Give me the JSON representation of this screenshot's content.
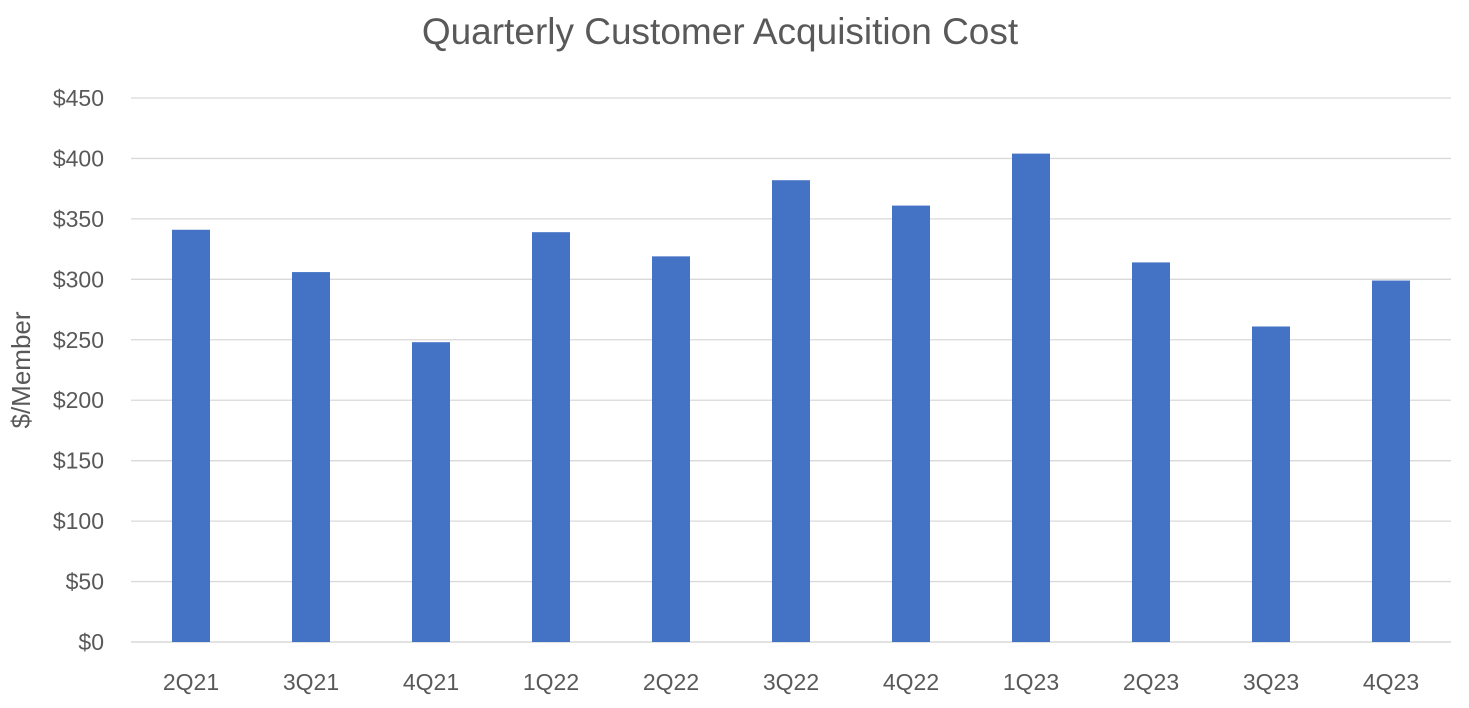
{
  "chart_data": {
    "type": "bar",
    "title": "Quarterly Customer Acquisition Cost",
    "xlabel": "",
    "ylabel": "$/Member",
    "categories": [
      "2Q21",
      "3Q21",
      "4Q21",
      "1Q22",
      "2Q22",
      "3Q22",
      "4Q22",
      "1Q23",
      "2Q23",
      "3Q23",
      "4Q23"
    ],
    "values": [
      341,
      306,
      248,
      339,
      319,
      382,
      361,
      404,
      314,
      261,
      299
    ],
    "ylim": [
      0,
      450
    ],
    "yticks": [
      0,
      50,
      100,
      150,
      200,
      250,
      300,
      350,
      400,
      450
    ],
    "ytick_labels": [
      "$0",
      "$50",
      "$100",
      "$150",
      "$200",
      "$250",
      "$300",
      "$350",
      "$400",
      "$450"
    ],
    "grid": true,
    "legend": "none",
    "bar_color": "#4472C4",
    "grid_color": "#D9D9D9",
    "text_color": "#595959"
  }
}
